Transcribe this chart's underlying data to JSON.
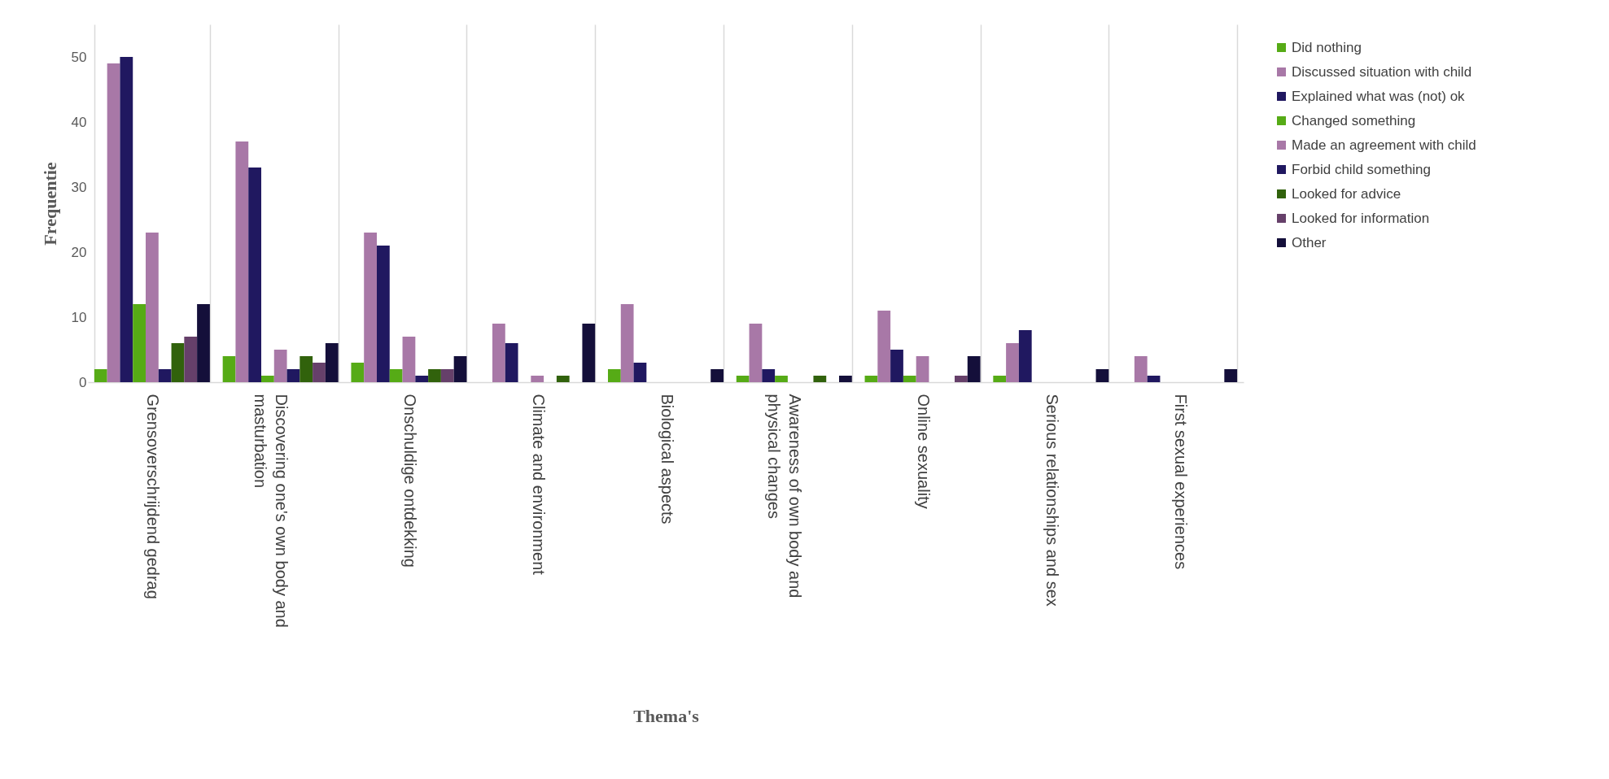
{
  "chart_data": {
    "type": "bar",
    "xlabel": "Thema's",
    "ylabel": "Frequentie",
    "categories": [
      "Grensoverschrijdend gedrag",
      "Discovering one's own body and masturbation",
      "Onschuldige ontdekking",
      "Climate and environment",
      "Biological aspects",
      "Awareness of own body and physical changes",
      "Online sexuality",
      "Serious relationships and sex",
      "First sexual experiences"
    ],
    "series": [
      {
        "name": "Did nothing",
        "color": "#56ab16",
        "values": [
          2,
          4,
          3,
          0,
          2,
          1,
          1,
          1,
          0
        ]
      },
      {
        "name": "Discussed situation with child",
        "color": "#a878a7",
        "values": [
          49,
          37,
          23,
          9,
          12,
          9,
          11,
          6,
          4
        ]
      },
      {
        "name": "Explained what was (not) ok",
        "color": "#201860",
        "values": [
          50,
          33,
          21,
          6,
          3,
          2,
          5,
          8,
          1
        ]
      },
      {
        "name": "Changed something",
        "color": "#56ab16",
        "values": [
          12,
          1,
          2,
          0,
          0,
          1,
          1,
          0,
          0
        ]
      },
      {
        "name": "Made an agreement with child",
        "color": "#a878a7",
        "values": [
          23,
          5,
          7,
          1,
          0,
          0,
          4,
          0,
          0
        ]
      },
      {
        "name": "Forbid child something",
        "color": "#201860",
        "values": [
          2,
          2,
          1,
          0,
          0,
          0,
          0,
          0,
          0
        ]
      },
      {
        "name": "Looked for advice",
        "color": "#31620c",
        "values": [
          6,
          4,
          2,
          1,
          0,
          1,
          0,
          0,
          0
        ]
      },
      {
        "name": "Looked for information",
        "color": "#66406a",
        "values": [
          7,
          3,
          2,
          0,
          0,
          0,
          1,
          0,
          0
        ]
      },
      {
        "name": "Other",
        "color": "#140f3a",
        "values": [
          12,
          6,
          4,
          9,
          2,
          1,
          4,
          2,
          2
        ]
      }
    ],
    "ylim": [
      0,
      55
    ],
    "yticks": [
      0,
      10,
      20,
      30,
      40,
      50
    ],
    "grid": "x",
    "legend": "right"
  }
}
